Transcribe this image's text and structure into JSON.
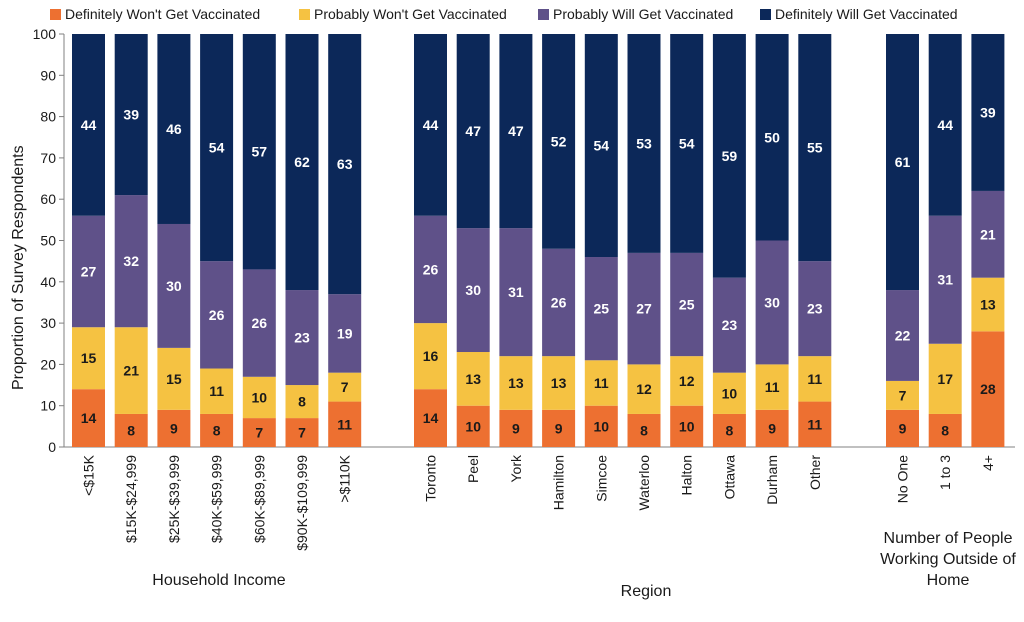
{
  "chart_data": {
    "type": "bar",
    "stacked": true,
    "ylabel": "Proportion of Survey Respondents",
    "ylim": [
      0,
      100
    ],
    "yticks": [
      0,
      10,
      20,
      30,
      40,
      50,
      60,
      70,
      80,
      90,
      100
    ],
    "legend": {
      "placement": "top",
      "entries": [
        {
          "name": "Definitely Won't Get Vaccinated",
          "color": "#ED7031"
        },
        {
          "name": "Probably Won't Get Vaccinated",
          "color": "#F5C242"
        },
        {
          "name": "Probably Will Get Vaccinated",
          "color": "#5F5189"
        },
        {
          "name": "Definitely Will Get Vaccinated",
          "color": "#0C2859"
        }
      ]
    },
    "groups": [
      {
        "label": "Household Income",
        "categories": [
          "<$15K",
          "$15K-$24,999",
          "$25K-$39,999",
          "$40K-$59,999",
          "$60K-$89,999",
          "$90K-$109,999",
          ">$110K"
        ],
        "values": [
          [
            14,
            15,
            27,
            44
          ],
          [
            8,
            21,
            32,
            39
          ],
          [
            9,
            15,
            30,
            46
          ],
          [
            8,
            11,
            26,
            54
          ],
          [
            7,
            10,
            26,
            57
          ],
          [
            7,
            8,
            23,
            62
          ],
          [
            11,
            7,
            19,
            63
          ]
        ]
      },
      {
        "label": "Region",
        "categories": [
          "Toronto",
          "Peel",
          "York",
          "Hamilton",
          "Simcoe",
          "Waterloo",
          "Halton",
          "Ottawa",
          "Durham",
          "Other"
        ],
        "values": [
          [
            14,
            16,
            26,
            44
          ],
          [
            10,
            13,
            30,
            47
          ],
          [
            9,
            13,
            31,
            47
          ],
          [
            9,
            13,
            26,
            52
          ],
          [
            10,
            11,
            25,
            54
          ],
          [
            8,
            12,
            27,
            53
          ],
          [
            10,
            12,
            25,
            54
          ],
          [
            8,
            10,
            23,
            59
          ],
          [
            9,
            11,
            30,
            50
          ],
          [
            11,
            11,
            23,
            55
          ]
        ]
      },
      {
        "label": "Number of People Working Outside of Home",
        "categories": [
          "No One",
          "1 to 3",
          "4+"
        ],
        "values": [
          [
            9,
            7,
            22,
            61
          ],
          [
            8,
            17,
            31,
            44
          ],
          [
            28,
            13,
            21,
            39
          ]
        ]
      }
    ]
  }
}
